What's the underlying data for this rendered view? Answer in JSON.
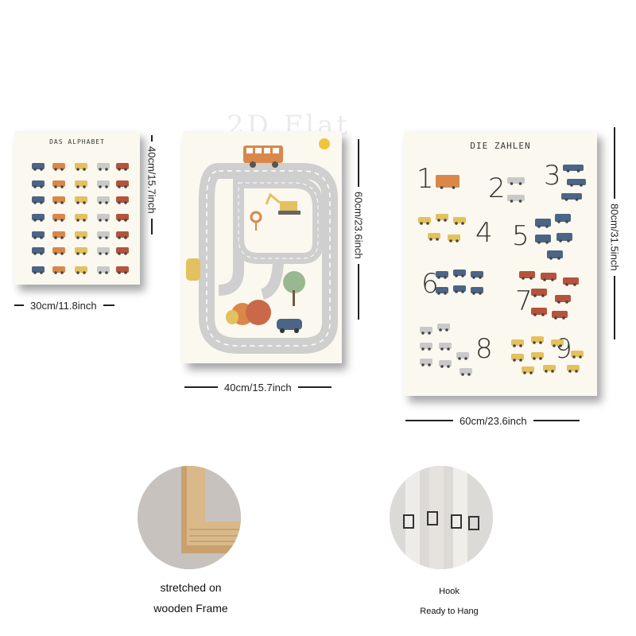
{
  "watermark": "2D Flat",
  "posters": {
    "alphabet": {
      "title": "DAS ALPHABET",
      "width_label": "30cm/11.8inch",
      "height_label": "40cm/15.7inch"
    },
    "road": {
      "width_label": "40cm/15.7inch",
      "height_label": "60cm/23.6inch"
    },
    "numbers": {
      "title": "DIE ZAHLEN",
      "width_label": "60cm/23.6inch",
      "height_label": "80cm/31.5inch",
      "digits": [
        "1",
        "2",
        "3",
        "4",
        "5",
        "6",
        "7",
        "8",
        "9"
      ]
    }
  },
  "features": {
    "frame": {
      "line1": "stretched on",
      "line2": "wooden Frame"
    },
    "hook": {
      "line1": "Hook",
      "line2": "Ready to Hang"
    }
  },
  "colors": {
    "blue": "#4a6585",
    "orange": "#d9884a",
    "yellow": "#e3c15e",
    "gray": "#c9c9c9",
    "red": "#b5533c"
  }
}
